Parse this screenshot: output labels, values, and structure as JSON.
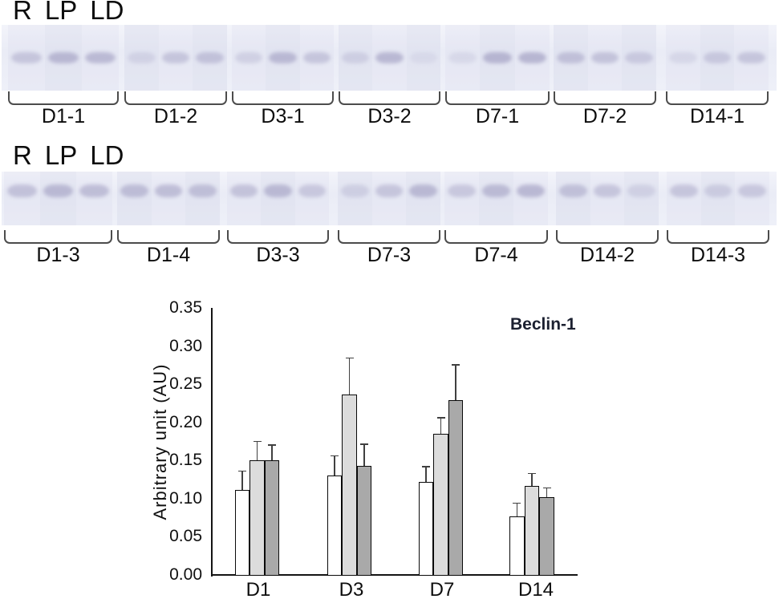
{
  "blots": {
    "lane_labels": [
      "R",
      "LP",
      "LD"
    ],
    "panels": [
      {
        "groups": [
          {
            "label": "D1-1",
            "band_intensities": [
              0.45,
              0.62,
              0.6
            ]
          },
          {
            "label": "D1-2",
            "band_intensities": [
              0.25,
              0.45,
              0.48
            ]
          },
          {
            "label": "D3-1",
            "band_intensities": [
              0.3,
              0.6,
              0.45
            ]
          },
          {
            "label": "D3-2",
            "band_intensities": [
              0.3,
              0.62,
              0.15
            ]
          },
          {
            "label": "D7-1",
            "band_intensities": [
              0.2,
              0.65,
              0.65
            ]
          },
          {
            "label": "D7-2",
            "band_intensities": [
              0.5,
              0.48,
              0.38
            ]
          },
          {
            "label": "D14-1",
            "band_intensities": [
              0.22,
              0.4,
              0.45
            ]
          }
        ]
      },
      {
        "groups": [
          {
            "label": "D1-3",
            "band_intensities": [
              0.5,
              0.6,
              0.55
            ]
          },
          {
            "label": "D1-4",
            "band_intensities": [
              0.55,
              0.55,
              0.52
            ]
          },
          {
            "label": "D3-3",
            "band_intensities": [
              0.48,
              0.6,
              0.42
            ]
          },
          {
            "label": "D7-3",
            "band_intensities": [
              0.3,
              0.45,
              0.6
            ]
          },
          {
            "label": "D7-4",
            "band_intensities": [
              0.42,
              0.58,
              0.62
            ]
          },
          {
            "label": "D14-2",
            "band_intensities": [
              0.5,
              0.45,
              0.28
            ]
          },
          {
            "label": "D14-3",
            "band_intensities": [
              0.45,
              0.35,
              0.42
            ]
          }
        ]
      }
    ]
  },
  "chart_data": {
    "type": "bar",
    "title": "Beclin-1",
    "ylabel": "Arbitrary unit (AU)",
    "xlabel": "",
    "categories": [
      "D1",
      "D3",
      "D7",
      "D14"
    ],
    "ylim": [
      0,
      0.35
    ],
    "ytick_step": 0.05,
    "grid": false,
    "legend": "none",
    "error_bars": "upper",
    "series": [
      {
        "name": "R",
        "fill": "#ffffff",
        "values": [
          0.111,
          0.13,
          0.122,
          0.077
        ],
        "errors": [
          0.026,
          0.027,
          0.021,
          0.018
        ]
      },
      {
        "name": "LP",
        "fill": "#dcdcdc",
        "values": [
          0.15,
          0.236,
          0.185,
          0.117
        ],
        "errors": [
          0.026,
          0.049,
          0.022,
          0.017
        ]
      },
      {
        "name": "LD",
        "fill": "#a9a9a9",
        "values": [
          0.15,
          0.143,
          0.229,
          0.102
        ],
        "errors": [
          0.021,
          0.029,
          0.047,
          0.013
        ]
      }
    ]
  }
}
